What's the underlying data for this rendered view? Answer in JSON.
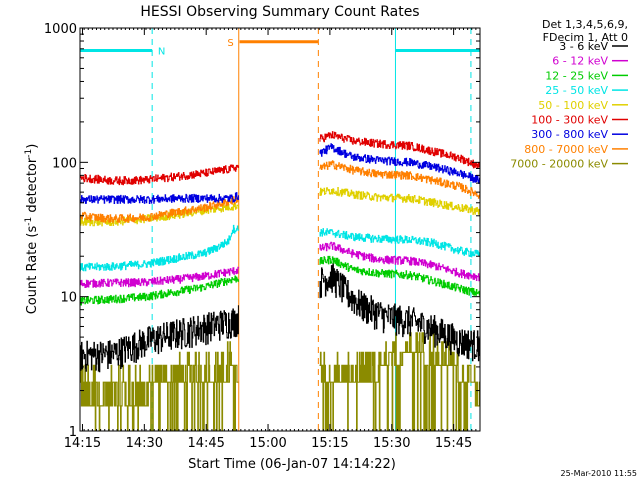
{
  "chart_data": {
    "type": "line",
    "title": "HESSI Observing Summary Count Rates",
    "xlabel": "Start Time (06-Jan-07 14:14:22)",
    "ylabel_main": "Count Rate (s",
    "ylabel_sup1": "-1",
    "ylabel_mid": " detector",
    "ylabel_sup2": "-1",
    "ylabel_end": ")",
    "y_scale": "log",
    "ylim": [
      1,
      1000
    ],
    "xlim_minutes": [
      0,
      97
    ],
    "x_ticks": [
      {
        "label": "14:15",
        "t": 0.6
      },
      {
        "label": "14:30",
        "t": 15.6
      },
      {
        "label": "14:45",
        "t": 30.6
      },
      {
        "label": "15:00",
        "t": 45.6
      },
      {
        "label": "15:15",
        "t": 60.6
      },
      {
        "label": "15:30",
        "t": 75.6
      },
      {
        "label": "15:45",
        "t": 90.6
      }
    ],
    "y_ticks": [
      {
        "label": "1",
        "v": 1
      },
      {
        "label": "10",
        "v": 10
      },
      {
        "label": "100",
        "v": 100
      },
      {
        "label": "1000",
        "v": 1000
      }
    ],
    "legend_header": [
      "Det 1,3,4,5,6,9,",
      "FDecim 1, Att 0"
    ],
    "legend_position": "right",
    "timestamp": "25-Mar-2010 11:55",
    "gaps": [
      [
        38.5,
        58.0
      ]
    ],
    "series": [
      {
        "name": "3 - 6 keV",
        "color": "#000000",
        "points": [
          [
            0,
            3.6
          ],
          [
            8,
            3.7
          ],
          [
            16,
            4.6
          ],
          [
            24,
            5.3
          ],
          [
            30,
            5.8
          ],
          [
            37,
            6.5
          ],
          [
            61,
            14
          ],
          [
            64,
            11
          ],
          [
            68,
            8.5
          ],
          [
            74,
            7
          ],
          [
            80,
            6.5
          ],
          [
            86,
            5.6
          ],
          [
            92,
            4.6
          ],
          [
            97,
            4.3
          ]
        ]
      },
      {
        "name": "6 - 12 keV",
        "color": "#d000d0",
        "points": [
          [
            0,
            12.5
          ],
          [
            8,
            12.7
          ],
          [
            16,
            12.8
          ],
          [
            24,
            13.5
          ],
          [
            30,
            14.2
          ],
          [
            37,
            15.5
          ],
          [
            61,
            24
          ],
          [
            66,
            21
          ],
          [
            72,
            19
          ],
          [
            80,
            18.5
          ],
          [
            86,
            17
          ],
          [
            92,
            15
          ],
          [
            97,
            14
          ]
        ]
      },
      {
        "name": "12 - 25 keV",
        "color": "#00cc00",
        "points": [
          [
            0,
            9.3
          ],
          [
            8,
            9.6
          ],
          [
            16,
            10
          ],
          [
            24,
            11
          ],
          [
            30,
            11.8
          ],
          [
            37,
            13.5
          ],
          [
            61,
            19
          ],
          [
            66,
            16
          ],
          [
            72,
            15
          ],
          [
            80,
            14.5
          ],
          [
            86,
            13
          ],
          [
            92,
            11.5
          ],
          [
            97,
            10.5
          ]
        ]
      },
      {
        "name": "25 - 50 keV",
        "color": "#00e5e5",
        "points": [
          [
            0,
            16.5
          ],
          [
            8,
            16.8
          ],
          [
            16,
            17.5
          ],
          [
            24,
            19.5
          ],
          [
            30,
            21
          ],
          [
            33,
            23
          ],
          [
            36,
            26
          ],
          [
            37,
            32
          ],
          [
            61,
            30
          ],
          [
            66,
            28
          ],
          [
            72,
            27
          ],
          [
            80,
            26.5
          ],
          [
            86,
            25
          ],
          [
            92,
            22
          ],
          [
            97,
            20.5
          ]
        ]
      },
      {
        "name": "50 - 100 keV",
        "color": "#e0d000",
        "points": [
          [
            0,
            36
          ],
          [
            8,
            36
          ],
          [
            16,
            38
          ],
          [
            24,
            41
          ],
          [
            30,
            44
          ],
          [
            37,
            47
          ],
          [
            61,
            62
          ],
          [
            66,
            58
          ],
          [
            72,
            55
          ],
          [
            80,
            54
          ],
          [
            86,
            50
          ],
          [
            92,
            46
          ],
          [
            97,
            43
          ]
        ]
      },
      {
        "name": "100 - 300 keV",
        "color": "#e00000",
        "points": [
          [
            0,
            77
          ],
          [
            8,
            73
          ],
          [
            16,
            74
          ],
          [
            24,
            79
          ],
          [
            30,
            83
          ],
          [
            37,
            90
          ],
          [
            61,
            160
          ],
          [
            66,
            145
          ],
          [
            72,
            138
          ],
          [
            80,
            133
          ],
          [
            86,
            120
          ],
          [
            92,
            108
          ],
          [
            97,
            93
          ]
        ]
      },
      {
        "name": "300 - 800 keV",
        "color": "#0000e0",
        "points": [
          [
            0,
            53
          ],
          [
            8,
            53
          ],
          [
            16,
            53
          ],
          [
            24,
            54
          ],
          [
            30,
            54
          ],
          [
            37,
            54
          ],
          [
            61,
            130
          ],
          [
            66,
            110
          ],
          [
            72,
            104
          ],
          [
            80,
            100
          ],
          [
            86,
            92
          ],
          [
            92,
            83
          ],
          [
            97,
            73
          ]
        ]
      },
      {
        "name": "800 - 7000 keV",
        "color": "#ff8000",
        "points": [
          [
            0,
            40
          ],
          [
            8,
            38
          ],
          [
            16,
            39
          ],
          [
            24,
            43
          ],
          [
            30,
            46
          ],
          [
            37,
            52
          ],
          [
            61,
            97
          ],
          [
            66,
            88
          ],
          [
            72,
            82
          ],
          [
            80,
            80
          ],
          [
            86,
            73
          ],
          [
            92,
            66
          ],
          [
            97,
            57
          ]
        ]
      },
      {
        "name": "7000 - 20000 keV",
        "color": "#8b8b00",
        "points": [
          [
            0,
            1.9
          ],
          [
            8,
            1.9
          ],
          [
            16,
            1.9
          ],
          [
            22,
            2.2
          ],
          [
            30,
            2.6
          ],
          [
            37,
            2.7
          ],
          [
            61,
            2.3
          ],
          [
            66,
            2.3
          ],
          [
            72,
            2.6
          ],
          [
            76,
            3.2
          ],
          [
            80,
            3.7
          ],
          [
            86,
            3.3
          ],
          [
            92,
            2.6
          ],
          [
            97,
            1.7
          ]
        ]
      }
    ],
    "observing_flags": [
      {
        "label": "N",
        "color": "#00e5e5",
        "segments": [
          [
            0,
            17.5
          ],
          [
            76.5,
            97
          ]
        ],
        "level": 680,
        "boundaries": [
          17.5,
          76.5,
          94.8
        ],
        "solid_boundaries": [
          76.5
        ]
      },
      {
        "label": "S",
        "color": "#ff8000",
        "segments": [
          [
            38.7,
            57.8
          ]
        ],
        "level": 790,
        "boundaries": [
          38.5,
          57.8
        ],
        "solid_boundaries": [
          38.5
        ]
      }
    ]
  }
}
